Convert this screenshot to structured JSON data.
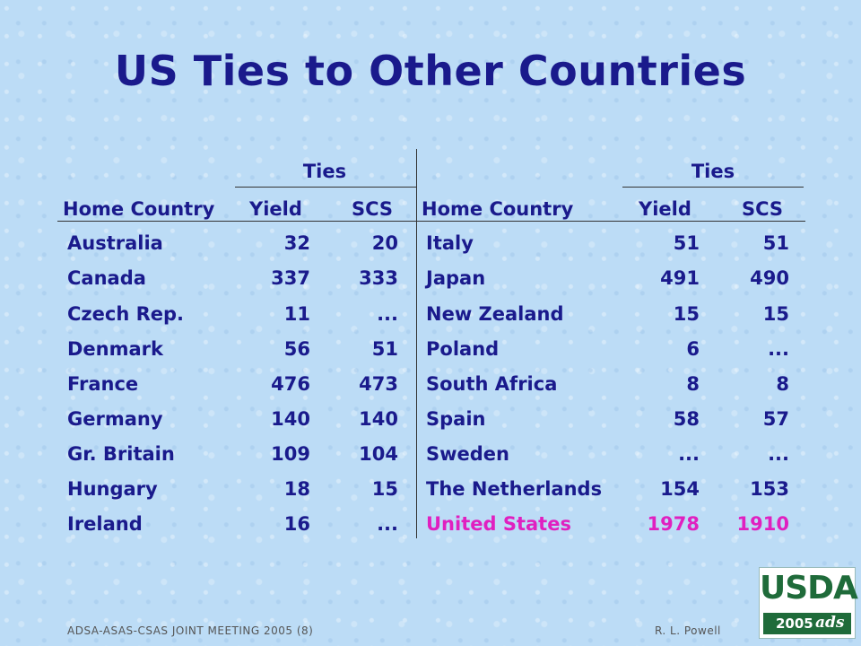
{
  "title": "US Ties to Other Countries",
  "table": {
    "group_header": "Ties",
    "col_home": "Home Country",
    "col_yield": "Yield",
    "col_scs": "SCS",
    "left_rows": [
      {
        "country": "Australia",
        "yield": "32",
        "scs": "20"
      },
      {
        "country": "Canada",
        "yield": "337",
        "scs": "333"
      },
      {
        "country": "Czech Rep.",
        "yield": "11",
        "scs": "..."
      },
      {
        "country": "Denmark",
        "yield": "56",
        "scs": "51"
      },
      {
        "country": "France",
        "yield": "476",
        "scs": "473"
      },
      {
        "country": "Germany",
        "yield": "140",
        "scs": "140"
      },
      {
        "country": "Gr. Britain",
        "yield": "109",
        "scs": "104"
      },
      {
        "country": "Hungary",
        "yield": "18",
        "scs": "15"
      },
      {
        "country": "Ireland",
        "yield": "16",
        "scs": "..."
      }
    ],
    "right_rows": [
      {
        "country": "Italy",
        "yield": "51",
        "scs": "51"
      },
      {
        "country": "Japan",
        "yield": "491",
        "scs": "490"
      },
      {
        "country": "New Zealand",
        "yield": "15",
        "scs": "15"
      },
      {
        "country": "Poland",
        "yield": "6",
        "scs": "..."
      },
      {
        "country": "South Africa",
        "yield": "8",
        "scs": "8"
      },
      {
        "country": "Spain",
        "yield": "58",
        "scs": "57"
      },
      {
        "country": "Sweden",
        "yield": "...",
        "scs": "..."
      },
      {
        "country": "The Netherlands",
        "yield": "154",
        "scs": "153"
      },
      {
        "country": "United States",
        "yield": "1978",
        "scs": "1910"
      }
    ]
  },
  "highlight_color": "#e020c0",
  "text_color": "#1a1a8c",
  "footer_left": "ADSA-ASAS-CSAS JOINT MEETING 2005 (8)",
  "footer_right": "R. L. Powell",
  "logo": {
    "text": "USDA",
    "year": "2005",
    "mark": "ads"
  }
}
